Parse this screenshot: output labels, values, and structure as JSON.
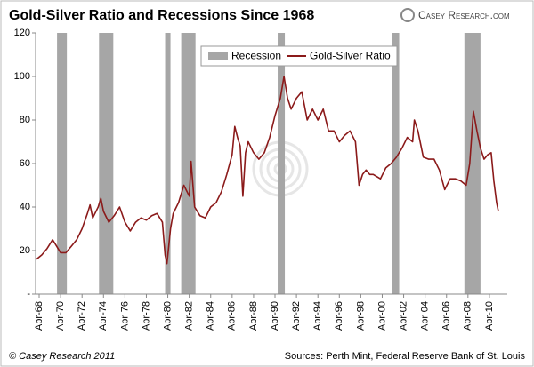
{
  "chart_data": {
    "type": "line",
    "title": "Gold-Silver Ratio and Recessions Since 1968",
    "logo": "Casey Research.com",
    "credit": "© Casey Research 2011",
    "source": "Sources: Perth Mint, Federal Reserve Bank of St. Louis",
    "xlim": [
      "1967-12",
      "2011-12"
    ],
    "xticks": [
      {
        "value": "1968-04",
        "label": "Apr-68"
      },
      {
        "value": "1970-04",
        "label": "Apr-70"
      },
      {
        "value": "1972-04",
        "label": "Apr-72"
      },
      {
        "value": "1974-04",
        "label": "Apr-74"
      },
      {
        "value": "1976-04",
        "label": "Apr-76"
      },
      {
        "value": "1978-04",
        "label": "Apr-78"
      },
      {
        "value": "1980-04",
        "label": "Apr-80"
      },
      {
        "value": "1982-04",
        "label": "Apr-82"
      },
      {
        "value": "1984-04",
        "label": "Apr-84"
      },
      {
        "value": "1986-04",
        "label": "Apr-86"
      },
      {
        "value": "1988-04",
        "label": "Apr-88"
      },
      {
        "value": "1990-04",
        "label": "Apr-90"
      },
      {
        "value": "1992-04",
        "label": "Apr-92"
      },
      {
        "value": "1994-04",
        "label": "Apr-94"
      },
      {
        "value": "1996-04",
        "label": "Apr-96"
      },
      {
        "value": "1998-04",
        "label": "Apr-98"
      },
      {
        "value": "2000-04",
        "label": "Apr-00"
      },
      {
        "value": "2002-04",
        "label": "Apr-02"
      },
      {
        "value": "2004-04",
        "label": "Apr-04"
      },
      {
        "value": "2006-04",
        "label": "Apr-06"
      },
      {
        "value": "2008-04",
        "label": "Apr-08"
      },
      {
        "value": "2010-04",
        "label": "Apr-10"
      }
    ],
    "ylim": [
      0,
      120
    ],
    "yticks": [
      {
        "value": 0,
        "label": "-"
      },
      20,
      40,
      60,
      80,
      100,
      120
    ],
    "legend": "top-center",
    "recessions": {
      "name": "Recession",
      "color": "#a6a6a6",
      "periods": [
        {
          "start": "1969-12",
          "end": "1970-11"
        },
        {
          "start": "1973-11",
          "end": "1975-03"
        },
        {
          "start": "1980-01",
          "end": "1980-07"
        },
        {
          "start": "1981-07",
          "end": "1982-11"
        },
        {
          "start": "1990-07",
          "end": "1991-03"
        },
        {
          "start": "2001-03",
          "end": "2001-11"
        },
        {
          "start": "2007-12",
          "end": "2009-06"
        }
      ]
    },
    "x": [
      "1968-01",
      "1968-07",
      "1969-01",
      "1969-07",
      "1969-10",
      "1970-04",
      "1970-10",
      "1971-04",
      "1971-10",
      "1972-04",
      "1972-10",
      "1973-01",
      "1973-04",
      "1973-10",
      "1974-01",
      "1974-04",
      "1974-10",
      "1975-04",
      "1975-10",
      "1976-04",
      "1976-10",
      "1977-04",
      "1977-10",
      "1978-04",
      "1978-10",
      "1979-04",
      "1979-10",
      "1980-01",
      "1980-03",
      "1980-07",
      "1980-10",
      "1981-04",
      "1981-10",
      "1982-04",
      "1982-06",
      "1982-10",
      "1983-04",
      "1983-10",
      "1984-04",
      "1984-10",
      "1985-04",
      "1985-10",
      "1986-04",
      "1986-07",
      "1986-10",
      "1987-01",
      "1987-04",
      "1987-07",
      "1987-10",
      "1988-04",
      "1988-10",
      "1989-04",
      "1989-10",
      "1990-04",
      "1990-10",
      "1991-02",
      "1991-06",
      "1991-10",
      "1992-04",
      "1992-10",
      "1993-04",
      "1993-10",
      "1994-04",
      "1994-10",
      "1995-04",
      "1995-10",
      "1996-04",
      "1996-10",
      "1997-04",
      "1997-10",
      "1998-02",
      "1998-06",
      "1998-10",
      "1999-02",
      "1999-06",
      "2000-02",
      "2000-08",
      "2001-02",
      "2001-08",
      "2002-02",
      "2002-08",
      "2003-02",
      "2003-04",
      "2003-08",
      "2004-02",
      "2004-08",
      "2005-02",
      "2005-08",
      "2006-02",
      "2006-08",
      "2007-02",
      "2007-08",
      "2008-02",
      "2008-06",
      "2008-10",
      "2009-02",
      "2009-06",
      "2009-10",
      "2010-02",
      "2010-06",
      "2010-09",
      "2010-12",
      "2011-02"
    ],
    "series": [
      {
        "name": "Gold-Silver Ratio",
        "color": "#8b1a1a",
        "values": [
          16,
          18,
          21,
          25,
          23,
          19,
          19,
          22,
          25,
          30,
          37,
          41,
          35,
          40,
          44,
          38,
          33,
          36,
          40,
          33,
          29,
          33,
          35,
          34,
          36,
          37,
          33,
          18,
          14,
          30,
          37,
          42,
          50,
          45,
          61,
          40,
          36,
          35,
          40,
          42,
          47,
          55,
          64,
          77,
          72,
          68,
          45,
          65,
          70,
          65,
          62,
          65,
          72,
          82,
          90,
          100,
          90,
          85,
          90,
          93,
          80,
          85,
          80,
          85,
          75,
          75,
          70,
          73,
          75,
          70,
          50,
          55,
          57,
          55,
          55,
          53,
          58,
          60,
          63,
          67,
          72,
          70,
          80,
          75,
          63,
          62,
          62,
          57,
          48,
          53,
          53,
          52,
          50,
          60,
          84,
          75,
          67,
          62,
          64,
          65,
          52,
          42,
          38
        ]
      }
    ]
  }
}
